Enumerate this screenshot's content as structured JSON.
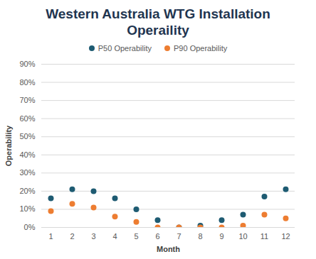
{
  "chart_data": {
    "type": "scatter",
    "title": "Western Australia WTG Installation Operaility",
    "x_label": "Month",
    "y_label": "Operability",
    "categories": [
      "1",
      "2",
      "3",
      "4",
      "5",
      "6",
      "7",
      "8",
      "9",
      "10",
      "11",
      "12"
    ],
    "series": [
      {
        "name": "P50 Operability",
        "color": "#1e5b72",
        "marker": "circle",
        "values": [
          16,
          21,
          20,
          16,
          10,
          4,
          0,
          1,
          4,
          7,
          17,
          21
        ]
      },
      {
        "name": "P90 Operability",
        "color": "#ed7d31",
        "marker": "circle",
        "values": [
          9,
          13,
          11,
          6,
          3,
          0,
          0,
          0,
          0,
          1,
          7,
          5
        ]
      }
    ],
    "ylim": [
      0,
      90
    ],
    "yticks": [
      {
        "value": 0,
        "label": "0%"
      },
      {
        "value": 10,
        "label": "10%"
      },
      {
        "value": 20,
        "label": "20%"
      },
      {
        "value": 30,
        "label": "30%"
      },
      {
        "value": 40,
        "label": "40%"
      },
      {
        "value": 50,
        "label": "50%"
      },
      {
        "value": 60,
        "label": "60%"
      },
      {
        "value": 70,
        "label": "70%"
      },
      {
        "value": 80,
        "label": "80%"
      },
      {
        "value": 90,
        "label": "90%"
      }
    ],
    "grid": true,
    "legend": "top"
  }
}
